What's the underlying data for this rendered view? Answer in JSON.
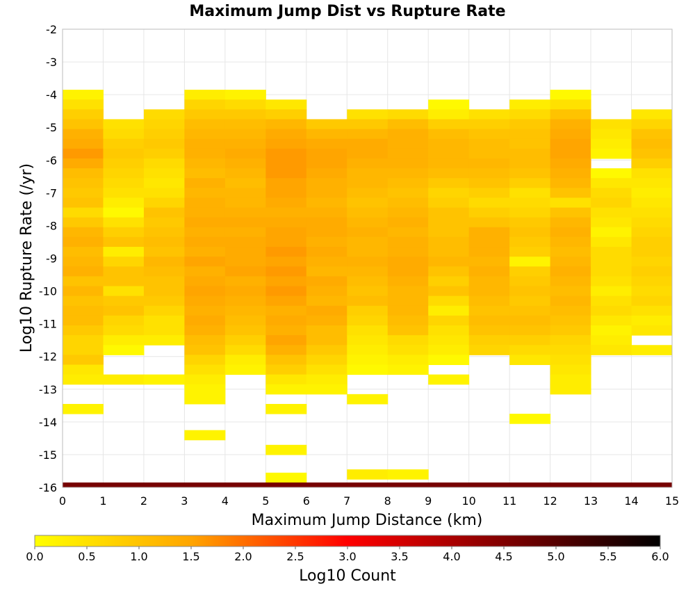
{
  "chart_data": {
    "type": "heatmap",
    "title": "Maximum Jump Dist vs Rupture Rate",
    "xlabel": "Maximum Jump Distance (km)",
    "ylabel": "Log10 Rupture Rate (/yr)",
    "xlim": [
      0,
      15
    ],
    "ylim": [
      -16,
      -2
    ],
    "x_ticks": [
      "0",
      "1",
      "2",
      "3",
      "4",
      "5",
      "6",
      "7",
      "8",
      "9",
      "10",
      "11",
      "12",
      "13",
      "14",
      "15"
    ],
    "y_ticks": [
      "-2",
      "-3",
      "-4",
      "-5",
      "-6",
      "-7",
      "-8",
      "-9",
      "-10",
      "-11",
      "-12",
      "-13",
      "-14",
      "-15",
      "-16"
    ],
    "grid": true,
    "bin_width_x": 1,
    "bin_height_y": 0.3,
    "colorbar": {
      "label": "Log10 Count",
      "range": [
        0,
        6
      ],
      "ticks": [
        "0.0",
        "0.5",
        "1.0",
        "1.5",
        "2.0",
        "2.5",
        "3.0",
        "3.5",
        "4.0",
        "4.5",
        "5.0",
        "5.5",
        "6.0"
      ],
      "colors": [
        "#ffff00",
        "#ffa500",
        "#ff0000",
        "#800000",
        "#000000"
      ]
    },
    "bottom_row": {
      "y_bin_start": -16.0,
      "value": 4.6
    },
    "columns": [
      {
        "x": 0,
        "y_start": -3.85,
        "values": [
          0.2,
          0.5,
          0.8,
          1.0,
          1.3,
          1.4,
          1.6,
          1.4,
          1.1,
          1.0,
          0.9,
          1.0,
          0.6,
          0.9,
          1.2,
          1.3,
          1.1,
          1.2,
          1.3,
          1.0,
          1.2,
          1.0,
          1.1,
          1.1,
          0.9,
          0.7,
          0.7,
          0.9,
          0.4,
          0.3
        ],
        "extras": [
          {
            "y": -13.45,
            "v": 0.2
          }
        ]
      },
      {
        "x": 1,
        "y_start": -4.75,
        "values": [
          0.5,
          0.6,
          0.8,
          0.9,
          0.8,
          0.7,
          0.6,
          0.5,
          0.3,
          0.1,
          0.5,
          0.8,
          1.0,
          0.3,
          0.7,
          1.0,
          1.0,
          0.5,
          0.9,
          1.0,
          0.7,
          0.6,
          0.3,
          0.1,
          0,
          0,
          0.3
        ],
        "extras": []
      },
      {
        "x": 2,
        "y_start": -4.45,
        "values": [
          0.6,
          0.7,
          0.8,
          0.9,
          0.8,
          0.6,
          0.5,
          0.4,
          0.5,
          0.7,
          1.0,
          0.9,
          1.0,
          1.1,
          1.0,
          1.2,
          1.1,
          1.0,
          1.0,
          0.9,
          0.7,
          0.5,
          0.5,
          0.3,
          0,
          0,
          0,
          0.2
        ],
        "extras": []
      },
      {
        "x": 3,
        "y_start": -3.85,
        "values": [
          0.3,
          0.7,
          0.9,
          1.1,
          1.2,
          1.3,
          1.3,
          1.2,
          1.1,
          1.3,
          1.2,
          1.3,
          1.3,
          1.4,
          1.3,
          1.4,
          1.3,
          1.5,
          1.3,
          1.4,
          1.5,
          1.4,
          1.3,
          1.4,
          1.3,
          1.1,
          1.0,
          0.7,
          0.5,
          0.3,
          0.2,
          0.2
        ],
        "extras": [
          {
            "y": -14.25,
            "v": 0.2
          }
        ]
      },
      {
        "x": 4,
        "y_start": -3.85,
        "values": [
          0.2,
          0.6,
          0.9,
          1.1,
          1.2,
          1.3,
          1.4,
          1.3,
          1.2,
          1.1,
          1.2,
          1.2,
          1.3,
          1.4,
          1.3,
          1.4,
          1.4,
          1.4,
          1.5,
          1.3,
          1.4,
          1.3,
          1.2,
          1.1,
          1.0,
          0.8,
          0.6,
          0.3,
          0.2
        ],
        "extras": []
      },
      {
        "x": 5,
        "y_start": -4.15,
        "values": [
          0.4,
          0.8,
          1.2,
          1.4,
          1.5,
          1.6,
          1.6,
          1.6,
          1.5,
          1.5,
          1.4,
          1.3,
          1.4,
          1.5,
          1.5,
          1.6,
          1.5,
          1.6,
          1.5,
          1.6,
          1.5,
          1.3,
          1.4,
          1.3,
          1.5,
          1.3,
          1.0,
          0.8,
          0.4,
          0.2,
          0,
          0.2
        ],
        "extras": [
          {
            "y": -14.7,
            "v": 0.2
          },
          {
            "y": -15.55,
            "v": 0.1
          }
        ]
      },
      {
        "x": 6,
        "y_start": -4.75,
        "values": [
          0.9,
          1.2,
          1.4,
          1.5,
          1.5,
          1.4,
          1.3,
          1.3,
          1.2,
          1.3,
          1.4,
          1.4,
          1.3,
          1.4,
          1.3,
          1.2,
          1.4,
          1.3,
          1.2,
          1.4,
          1.3,
          1.1,
          1.1,
          0.9,
          0.7,
          0.5,
          0.3,
          0.2
        ],
        "extras": []
      },
      {
        "x": 7,
        "y_start": -4.45,
        "values": [
          0.5,
          0.9,
          1.2,
          1.4,
          1.4,
          1.3,
          1.2,
          1.2,
          1.1,
          1.0,
          1.1,
          1.2,
          1.3,
          1.2,
          1.2,
          1.3,
          1.2,
          1.1,
          1.0,
          1.1,
          0.8,
          0.7,
          0.5,
          0.4,
          0.3,
          0.2,
          0.1,
          0,
          0,
          0.2
        ],
        "extras": [
          {
            "y": -15.45,
            "v": 0.3
          }
        ]
      },
      {
        "x": 8,
        "y_start": -4.45,
        "values": [
          0.6,
          1.1,
          1.3,
          1.3,
          1.3,
          1.3,
          1.2,
          1.1,
          1.0,
          1.1,
          1.2,
          1.3,
          1.2,
          1.3,
          1.3,
          1.4,
          1.4,
          1.3,
          1.2,
          1.2,
          1.2,
          1.1,
          1.0,
          0.6,
          0.5,
          0.3,
          0.2
        ],
        "extras": [
          {
            "y": -15.45,
            "v": 0.2
          }
        ]
      },
      {
        "x": 9,
        "y_start": -4.15,
        "values": [
          0.1,
          0.3,
          0.8,
          1.1,
          1.2,
          1.2,
          1.2,
          1.1,
          0.9,
          0.7,
          0.8,
          1.0,
          1.0,
          1.0,
          1.1,
          1.1,
          1.2,
          1.0,
          0.8,
          1.0,
          0.6,
          0.3,
          0.7,
          0.5,
          0.4,
          0.3,
          0.1,
          0,
          0.2
        ],
        "extras": []
      },
      {
        "x": 10,
        "y_start": -4.45,
        "values": [
          0.5,
          0.8,
          1.0,
          1.1,
          1.1,
          1.2,
          1.1,
          1.0,
          0.8,
          0.6,
          0.8,
          1.0,
          1.3,
          1.3,
          1.3,
          1.2,
          1.3,
          1.2,
          1.2,
          1.1,
          1.0,
          1.1,
          1.0,
          0.8,
          0.7
        ],
        "extras": []
      },
      {
        "x": 11,
        "y_start": -4.15,
        "values": [
          0.3,
          0.6,
          0.9,
          1.0,
          1.0,
          1.1,
          1.1,
          1.0,
          0.8,
          0.5,
          0.6,
          0.7,
          0.9,
          1.0,
          0.9,
          0.8,
          0.2,
          0.8,
          0.9,
          1.0,
          0.9,
          1.0,
          1.1,
          1.0,
          0.8,
          0.6,
          0.4
        ],
        "extras": [
          {
            "y": -13.75,
            "v": 0.1
          }
        ]
      },
      {
        "x": 12,
        "y_start": -3.85,
        "values": [
          0.1,
          0.5,
          1.0,
          1.3,
          1.4,
          1.5,
          1.5,
          1.4,
          1.3,
          1.2,
          1.0,
          0.5,
          1.0,
          1.2,
          1.3,
          1.2,
          1.1,
          1.2,
          1.3,
          1.2,
          1.1,
          1.2,
          1.1,
          1.0,
          0.9,
          0.7,
          0.6,
          0.5,
          0.4,
          0.3,
          0.3
        ],
        "extras": []
      },
      {
        "x": 13,
        "y_start": -4.75,
        "values": [
          0.5,
          0.4,
          0.3,
          0.2,
          0,
          0.1,
          0.4,
          0.6,
          0.7,
          0.5,
          0.4,
          0.2,
          0.4,
          0.6,
          0.6,
          0.6,
          0.5,
          0.3,
          0.5,
          0.6,
          0.4,
          0.2,
          0.3,
          0.4
        ],
        "extras": []
      },
      {
        "x": 14,
        "y_start": -4.45,
        "values": [
          0.4,
          0.7,
          1.0,
          1.1,
          1.0,
          0.8,
          0.5,
          0.4,
          0.3,
          0.4,
          0.5,
          0.6,
          0.7,
          0.8,
          0.8,
          0.7,
          0.8,
          0.7,
          0.6,
          0.7,
          0.5,
          0.3,
          0.4,
          0,
          0.3
        ],
        "extras": []
      }
    ]
  }
}
